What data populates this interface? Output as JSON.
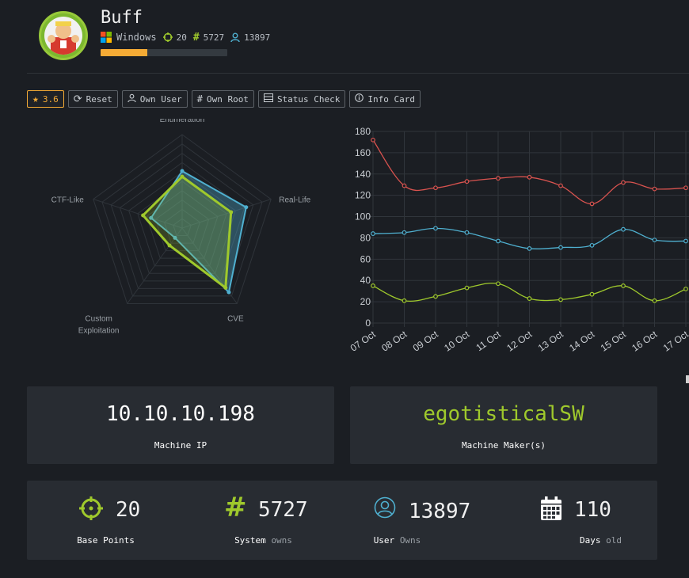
{
  "machine": {
    "name": "Buff",
    "os": "Windows",
    "points": "20",
    "system_owns": "5727",
    "user_owns": "13897",
    "progress_fraction": 0.37
  },
  "toolbar": {
    "rating": "3.6",
    "reset": "Reset",
    "own_user": "Own User",
    "own_root": "Own Root",
    "status_check": "Status Check",
    "info_card": "Info Card"
  },
  "radar": {
    "axes": [
      "Enumeration",
      "Real-Life",
      "CVE",
      "Custom",
      "CTF-Like"
    ],
    "custom_line2": "Exploitation",
    "max": 10,
    "series": [
      {
        "color": "#4fb0d0",
        "values": [
          6.1,
          7.2,
          8.5,
          1.3,
          3.5
        ]
      },
      {
        "color": "#9fc92c",
        "values": [
          5.5,
          5.5,
          7.9,
          2.3,
          4.4
        ]
      }
    ]
  },
  "chart_data": {
    "type": "line",
    "categories": [
      "07 Oct",
      "08 Oct",
      "09 Oct",
      "10 Oct",
      "11 Oct",
      "12 Oct",
      "13 Oct",
      "14 Oct",
      "15 Oct",
      "16 Oct",
      "17 Oct"
    ],
    "ylim": [
      0,
      180
    ],
    "yticks": [
      "0",
      "20",
      "40",
      "60",
      "80",
      "100",
      "120",
      "140",
      "160",
      "180"
    ],
    "grid": true,
    "series": [
      {
        "color": "#d9534f",
        "values": [
          172,
          129,
          127,
          133,
          136,
          137,
          129,
          112,
          132,
          126,
          127
        ]
      },
      {
        "color": "#4fb0d0",
        "values": [
          84,
          85,
          89,
          85,
          77,
          70,
          71,
          73,
          88,
          78,
          77
        ]
      },
      {
        "color": "#9fc92c",
        "values": [
          35,
          21,
          25,
          33,
          37,
          23,
          22,
          27,
          35,
          21,
          32
        ]
      }
    ]
  },
  "cards": {
    "ip_value": "10.10.10.198",
    "ip_label": "Machine IP",
    "maker_value": "egotisticalSW",
    "maker_label": "Machine Maker(s)"
  },
  "stats": {
    "base_points": "20",
    "base_points_label": "Base Points",
    "system": "5727",
    "system_label": "System",
    "system_suffix": "owns",
    "user": "13897",
    "user_label": "User",
    "user_suffix": "Owns",
    "days": "110",
    "days_label": "Days",
    "days_suffix": "old"
  },
  "colors": {
    "accent_green": "#9fc92c",
    "accent_orange": "#f5ab35",
    "accent_blue": "#4fb0d0",
    "accent_red": "#d9534f"
  }
}
